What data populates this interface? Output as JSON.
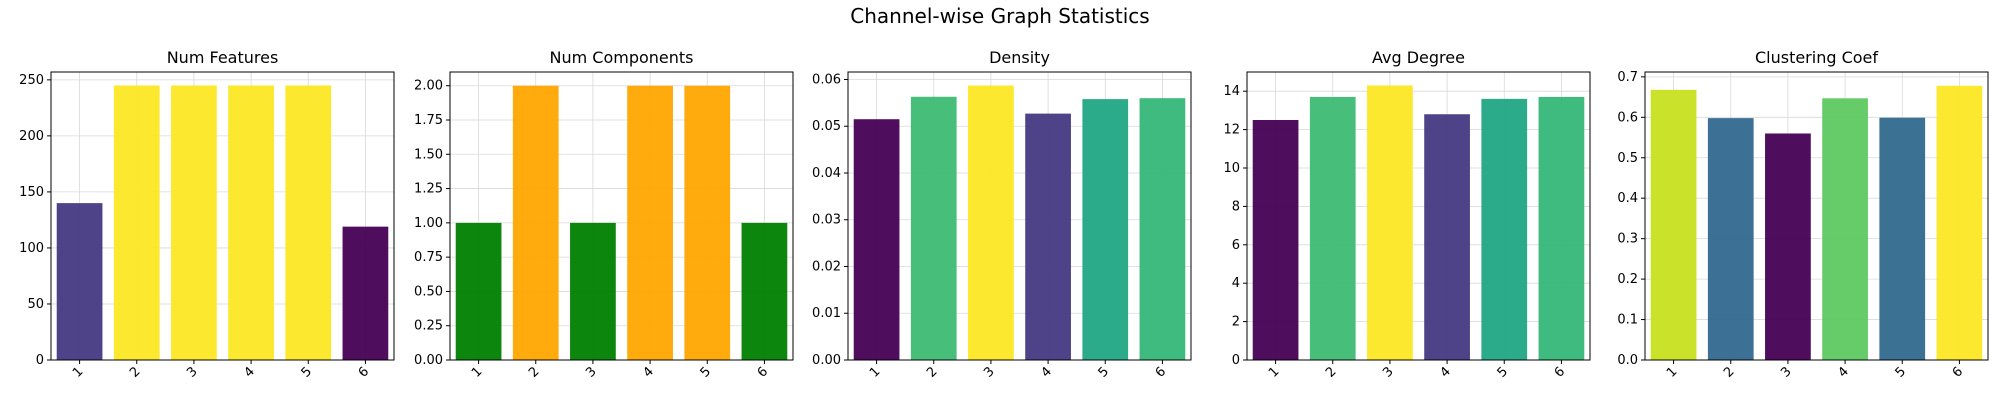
{
  "figure": {
    "suptitle": "Channel-wise Graph Statistics"
  },
  "chart_data": [
    {
      "type": "bar",
      "title": "Num Features",
      "categories": [
        "1",
        "2",
        "3",
        "4",
        "5",
        "6"
      ],
      "values": [
        140,
        245,
        245,
        245,
        245,
        119
      ],
      "colors": [
        "#443983",
        "#fde725",
        "#fde725",
        "#fde725",
        "#fde725",
        "#440154"
      ],
      "ylim": [
        0,
        257
      ],
      "yticks": [
        0,
        50,
        100,
        150,
        200,
        250
      ],
      "ytick_labels": [
        "0",
        "50",
        "100",
        "150",
        "200",
        "250"
      ],
      "xlabel": "",
      "ylabel": "",
      "grid": true
    },
    {
      "type": "bar",
      "title": "Num Components",
      "categories": [
        "1",
        "2",
        "3",
        "4",
        "5",
        "6"
      ],
      "values": [
        1,
        2,
        1,
        2,
        2,
        1
      ],
      "colors": [
        "#008000",
        "#ffa500",
        "#008000",
        "#ffa500",
        "#ffa500",
        "#008000"
      ],
      "ylim": [
        0,
        2.1
      ],
      "yticks": [
        0,
        0.25,
        0.5,
        0.75,
        1.0,
        1.25,
        1.5,
        1.75,
        2.0
      ],
      "ytick_labels": [
        "0.00",
        "0.25",
        "0.50",
        "0.75",
        "1.00",
        "1.25",
        "1.50",
        "1.75",
        "2.00"
      ],
      "xlabel": "",
      "ylabel": "",
      "grid": true
    },
    {
      "type": "bar",
      "title": "Density",
      "categories": [
        "1",
        "2",
        "3",
        "4",
        "5",
        "6"
      ],
      "values": [
        0.0515,
        0.0563,
        0.0587,
        0.0527,
        0.0558,
        0.056
      ],
      "colors": [
        "#440154",
        "#3dbc74",
        "#fde725",
        "#443983",
        "#21a685",
        "#35b779"
      ],
      "ylim": [
        0,
        0.0616
      ],
      "yticks": [
        0,
        0.01,
        0.02,
        0.03,
        0.04,
        0.05,
        0.06
      ],
      "ytick_labels": [
        "0.00",
        "0.01",
        "0.02",
        "0.03",
        "0.04",
        "0.05",
        "0.06"
      ],
      "xlabel": "",
      "ylabel": "",
      "grid": true
    },
    {
      "type": "bar",
      "title": "Avg Degree",
      "categories": [
        "1",
        "2",
        "3",
        "4",
        "5",
        "6"
      ],
      "values": [
        12.5,
        13.7,
        14.3,
        12.8,
        13.6,
        13.7
      ],
      "colors": [
        "#440154",
        "#3dbc74",
        "#fde725",
        "#443983",
        "#21a685",
        "#35b779"
      ],
      "ylim": [
        0,
        15
      ],
      "yticks": [
        0,
        2,
        4,
        6,
        8,
        10,
        12,
        14
      ],
      "ytick_labels": [
        "0",
        "2",
        "4",
        "6",
        "8",
        "10",
        "12",
        "14"
      ],
      "xlabel": "",
      "ylabel": "",
      "grid": true
    },
    {
      "type": "bar",
      "title": "Clustering Coef",
      "categories": [
        "1",
        "2",
        "3",
        "4",
        "5",
        "6"
      ],
      "values": [
        0.668,
        0.598,
        0.56,
        0.647,
        0.599,
        0.678
      ],
      "colors": [
        "#c8e020",
        "#31688e",
        "#440154",
        "#5ec962",
        "#306a8e",
        "#fde725"
      ],
      "ylim": [
        0,
        0.712
      ],
      "yticks": [
        0,
        0.1,
        0.2,
        0.3,
        0.4,
        0.5,
        0.6,
        0.7
      ],
      "ytick_labels": [
        "0.0",
        "0.1",
        "0.2",
        "0.3",
        "0.4",
        "0.5",
        "0.6",
        "0.7"
      ],
      "xlabel": "",
      "ylabel": "",
      "grid": true
    }
  ]
}
